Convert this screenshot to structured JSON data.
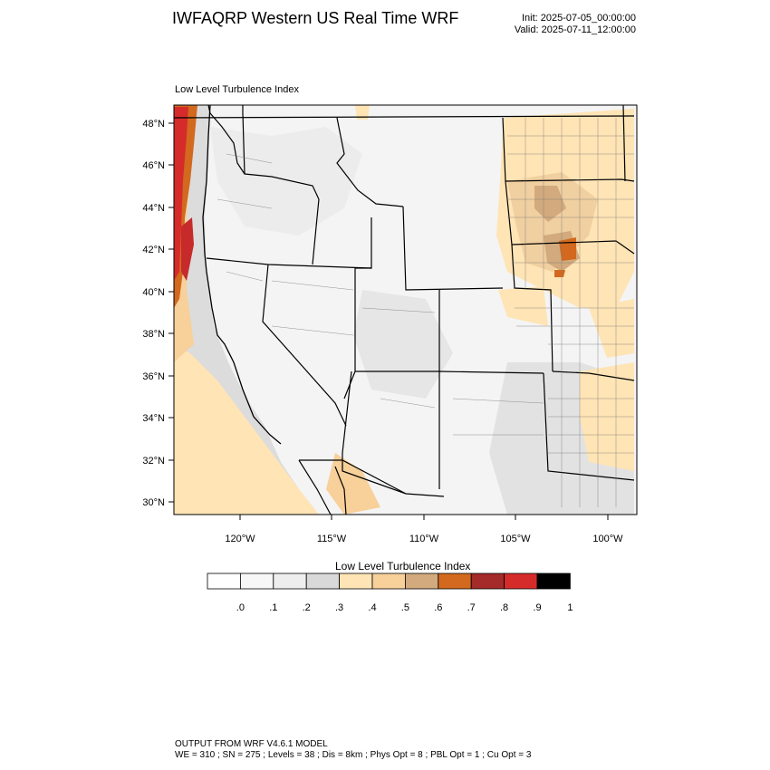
{
  "header": {
    "title": "IWFAQRP Western US Real Time WRF",
    "init": "Init: 2025-07-05_00:00:00",
    "valid": "Valid: 2025-07-11_12:00:00"
  },
  "field_label": "Low Level Turbulence Index",
  "map": {
    "lat_labels": [
      "48°N",
      "46°N",
      "44°N",
      "42°N",
      "40°N",
      "38°N",
      "36°N",
      "34°N",
      "32°N",
      "30°N"
    ],
    "lon_labels": [
      "120°W",
      "115°W",
      "110°W",
      "105°W",
      "100°W"
    ]
  },
  "colorbar": {
    "title": "Low Level Turbulence Index",
    "labels": [
      ".0",
      ".1",
      ".2",
      ".3",
      ".4",
      ".5",
      ".6",
      ".7",
      ".8",
      ".9",
      "1"
    ],
    "colors": [
      "#ffffff",
      "#f7f7f7",
      "#eeeeee",
      "#d9d9d9",
      "#ffe4b5",
      "#f7d09a",
      "#d2aa7d",
      "#d2691e",
      "#a52a2a",
      "#d62b2b",
      "#000000"
    ]
  },
  "footer": {
    "line1": "OUTPUT FROM WRF V4.6.1 MODEL",
    "line2": "WE = 310 ; SN = 275 ; Levels = 38 ; Dis = 8km ; Phys Opt = 8 ; PBL Opt = 1 ; Cu Opt = 3"
  }
}
